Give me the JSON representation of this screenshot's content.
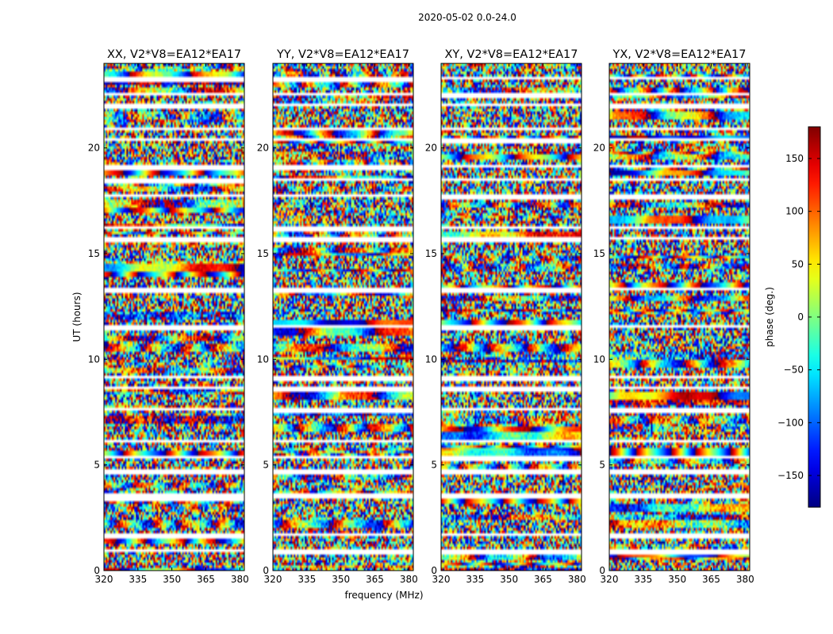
{
  "chart_data": {
    "type": "heatmap",
    "title": "2020-05-02 0.0-24.0",
    "xlabel": "frequency (MHz)",
    "ylabel": "UT (hours)",
    "xlim": [
      320,
      382
    ],
    "ylim": [
      0,
      24
    ],
    "x_ticks": [
      "320",
      "335",
      "350",
      "365",
      "380"
    ],
    "x_tick_values": [
      320,
      335,
      350,
      365,
      380
    ],
    "y_ticks": [
      "0",
      "5",
      "10",
      "15",
      "20"
    ],
    "y_tick_values": [
      0,
      5,
      10,
      15,
      20
    ],
    "panels": [
      {
        "title": "XX, V2*V8=EA12*EA17",
        "polarization": "XX",
        "baseline": "V2*V8=EA12*EA17"
      },
      {
        "title": "YY, V2*V8=EA12*EA17",
        "polarization": "YY",
        "baseline": "V2*V8=EA12*EA17"
      },
      {
        "title": "XY, V2*V8=EA12*EA17",
        "polarization": "XY",
        "baseline": "V2*V8=EA12*EA17"
      },
      {
        "title": "YX, V2*V8=EA12*EA17",
        "polarization": "YX",
        "baseline": "V2*V8=EA12*EA17"
      }
    ],
    "colorbar": {
      "label": "phase (deg.)",
      "range": [
        -180,
        180
      ],
      "ticks": [
        "150",
        "100",
        "50",
        "0",
        "−50",
        "−100",
        "−150"
      ],
      "tick_values": [
        150,
        100,
        50,
        0,
        -50,
        -100,
        -150
      ],
      "colormap": "jet"
    },
    "flagged_gaps_ut_hours": [
      0.9,
      1.6,
      3.4,
      3.6,
      4.7,
      5.3,
      6.1,
      7.6,
      8.6,
      9.1,
      11.5,
      13.3,
      15.8,
      16.2,
      17.8,
      18.6,
      19.2,
      20.4,
      20.9,
      22.1,
      22.6,
      23.4
    ]
  }
}
